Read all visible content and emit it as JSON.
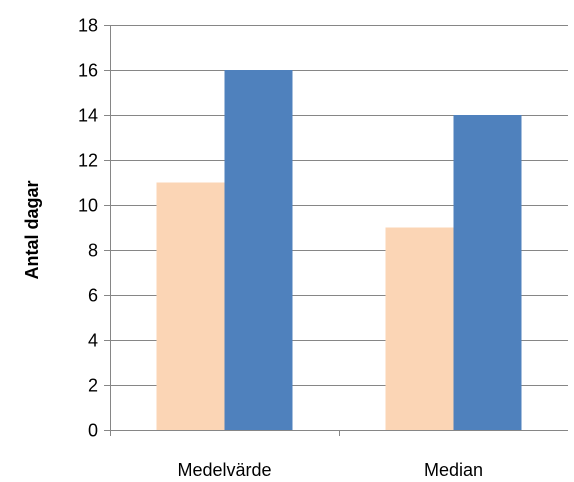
{
  "chart_data": {
    "type": "bar",
    "title": "",
    "xlabel": "",
    "ylabel": "Antal dagar",
    "categories": [
      "Medelvärde",
      "Median"
    ],
    "series": [
      {
        "values": [
          11,
          9
        ],
        "color": "#FBD5B5"
      },
      {
        "values": [
          16,
          14
        ],
        "color": "#4F81BD"
      }
    ],
    "ylim": [
      0,
      18
    ],
    "yticks": [
      0,
      2,
      4,
      6,
      8,
      10,
      12,
      14,
      16,
      18
    ],
    "grid": true,
    "legend": "none",
    "colors": {
      "gridline": "#868686",
      "axis": "#868686"
    }
  }
}
